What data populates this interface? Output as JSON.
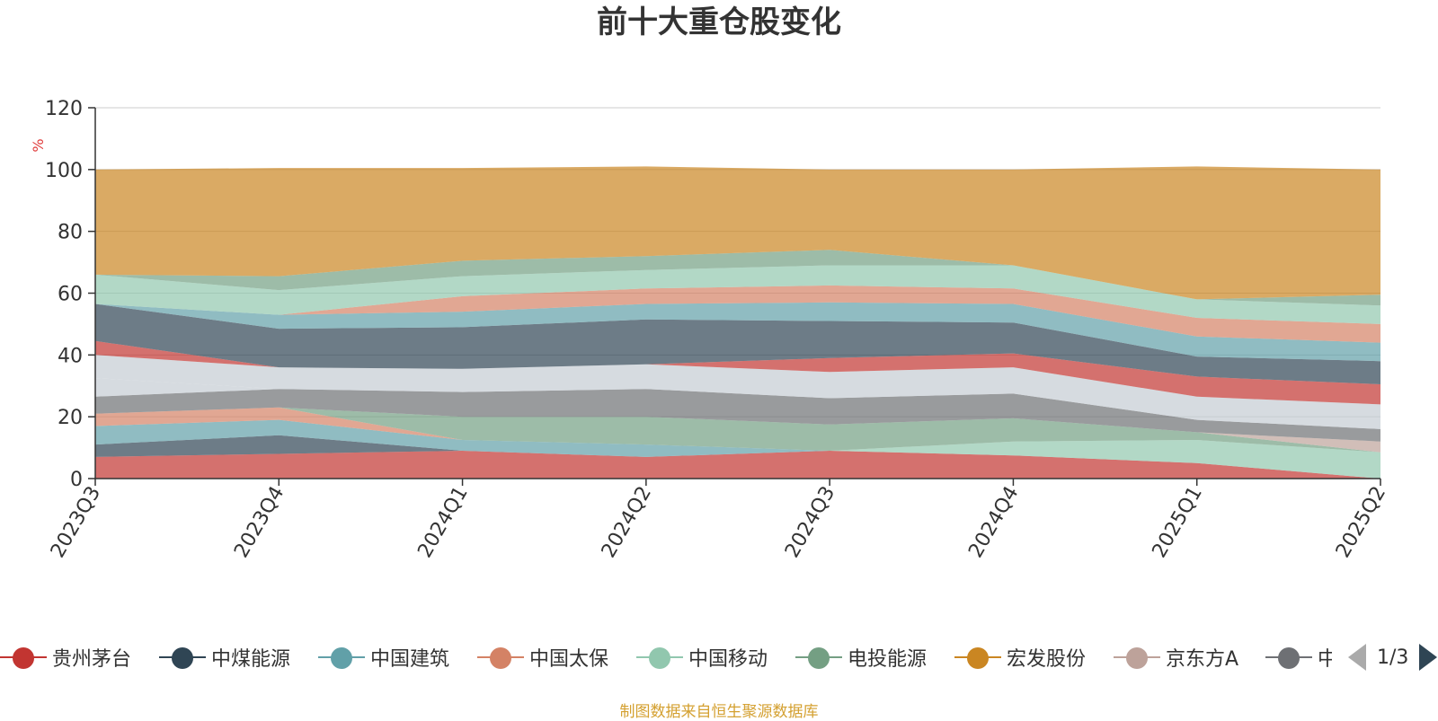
{
  "chart_data": {
    "type": "area",
    "title": "前十大重仓股变化",
    "ylabel": "%",
    "ylim": [
      0,
      120
    ],
    "yticks": [
      "0",
      "20",
      "40",
      "60",
      "80",
      "100",
      "120"
    ],
    "stacked": true,
    "grid": true,
    "categories": [
      "2023Q3",
      "2023Q4",
      "2024Q1",
      "2024Q2",
      "2024Q3",
      "2024Q4",
      "2025Q1",
      "2025Q2"
    ],
    "series": [
      {
        "name": "贵州茅台",
        "color": "#c23531",
        "values": [
          7,
          8,
          9,
          7,
          9,
          7.5,
          5,
          0
        ]
      },
      {
        "name": "中煤能源",
        "color": "#2f4554",
        "values": [
          4,
          6,
          0,
          0,
          0,
          0,
          0,
          0
        ]
      },
      {
        "name": "中国建筑",
        "color": "#61a0a8",
        "values": [
          6,
          5,
          3.5,
          4,
          0,
          0,
          0,
          0
        ]
      },
      {
        "name": "中国太保",
        "color": "#d48265",
        "values": [
          4,
          4,
          0,
          0,
          0,
          0,
          0,
          0
        ]
      },
      {
        "name": "中国移动",
        "color": "#91c7ae",
        "values": [
          0,
          0,
          0,
          0,
          0,
          4.5,
          7.5,
          8.5
        ]
      },
      {
        "name": "电投能源",
        "color": "#749f83",
        "values": [
          0,
          0,
          7.5,
          9,
          8.5,
          7.5,
          2.5,
          0
        ]
      },
      {
        "name": "宏发股份",
        "color": "#ca8622",
        "values": [
          0,
          0,
          0,
          0,
          0,
          0,
          0,
          0
        ]
      },
      {
        "name": "京东方A",
        "color": "#bda29a",
        "values": [
          0,
          0,
          0,
          0,
          0,
          0,
          0,
          3.5
        ]
      },
      {
        "name": "",
        "color": "#6e7074",
        "values": [
          5.5,
          6,
          8,
          9,
          8.5,
          8,
          4,
          4
        ]
      },
      {
        "name": "",
        "color": "#c4ccd3",
        "values": [
          6,
          0,
          0,
          0,
          0,
          0,
          0,
          0
        ]
      },
      {
        "name": "",
        "color": "#c4ccd3",
        "values": [
          7.5,
          7,
          7.5,
          8,
          8.5,
          8.5,
          7.5,
          8
        ]
      },
      {
        "name": "",
        "color": "#c23531",
        "values": [
          4.5,
          0,
          0,
          0,
          4.5,
          4.5,
          6.5,
          6.5
        ]
      },
      {
        "name": "",
        "color": "#2f4554",
        "values": [
          12,
          12.5,
          13.5,
          14.5,
          12,
          10,
          6.5,
          7.5
        ]
      },
      {
        "name": "",
        "color": "#61a0a8",
        "values": [
          0,
          4.5,
          5,
          5,
          6,
          6,
          6.5,
          6
        ]
      },
      {
        "name": "",
        "color": "#d48265",
        "values": [
          0,
          0,
          5,
          5,
          5.5,
          5,
          6,
          6
        ]
      },
      {
        "name": "",
        "color": "#91c7ae",
        "values": [
          9.5,
          8,
          6.5,
          6,
          6.5,
          7.5,
          6,
          6
        ]
      },
      {
        "name": "",
        "color": "#749f83",
        "values": [
          0,
          4.5,
          5,
          4.5,
          5,
          0,
          0,
          3.5
        ]
      },
      {
        "name": "",
        "color": "#ca8622",
        "values": [
          34,
          35,
          30,
          29,
          26,
          31,
          43,
          40.5
        ]
      }
    ]
  },
  "legend": {
    "items": [
      {
        "label": "贵州茅台",
        "color": "#c23531"
      },
      {
        "label": "中煤能源",
        "color": "#2f4554"
      },
      {
        "label": "中国建筑",
        "color": "#61a0a8"
      },
      {
        "label": "中国太保",
        "color": "#d48265"
      },
      {
        "label": "中国移动",
        "color": "#91c7ae"
      },
      {
        "label": "电投能源",
        "color": "#749f83"
      },
      {
        "label": "宏发股份",
        "color": "#ca8622"
      },
      {
        "label": "京东方A",
        "color": "#bda29a"
      },
      {
        "label": "中",
        "color": "#6e7074"
      }
    ],
    "page": "1/3"
  },
  "source_note": "制图数据来自恒生聚源数据库"
}
